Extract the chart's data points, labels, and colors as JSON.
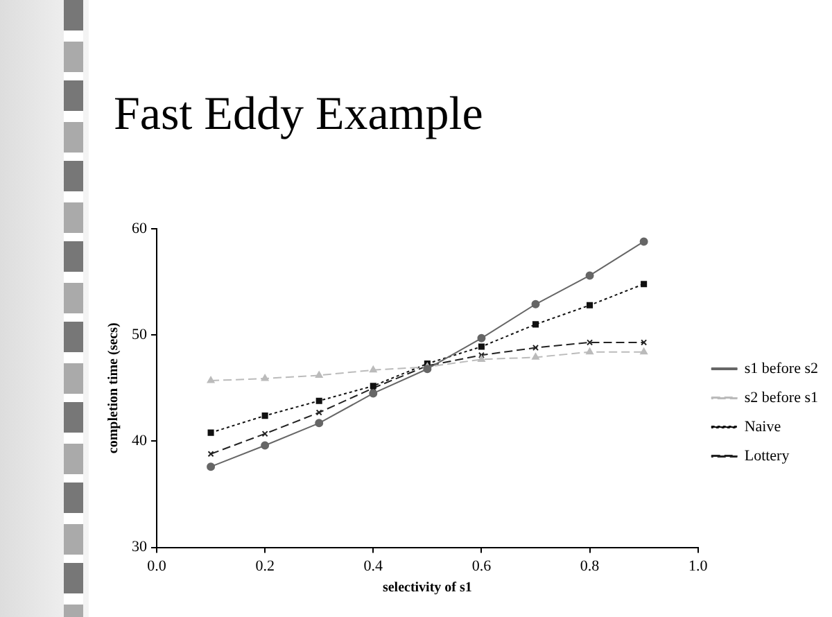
{
  "chart_data": {
    "type": "line",
    "title": "Fast Eddy Example",
    "xlabel": "selectivity of s1",
    "ylabel": "completion time (secs)",
    "x": [
      0.1,
      0.2,
      0.3,
      0.4,
      0.5,
      0.6,
      0.7,
      0.8,
      0.9
    ],
    "series": [
      {
        "name": "s1 before s2",
        "color": "#666666",
        "marker": "circle",
        "line_style": "solid",
        "values": [
          37.6,
          39.6,
          41.7,
          44.5,
          46.8,
          49.7,
          52.9,
          55.6,
          58.8
        ]
      },
      {
        "name": "s2 before s1",
        "color": "#bbbbbb",
        "marker": "triangle",
        "line_style": "dashed",
        "values": [
          45.7,
          45.9,
          46.2,
          46.7,
          47.0,
          47.7,
          47.9,
          48.4,
          48.4
        ]
      },
      {
        "name": "Naive",
        "color": "#111111",
        "marker": "square",
        "line_style": "dotted",
        "values": [
          40.8,
          42.4,
          43.8,
          45.2,
          47.3,
          48.9,
          51.0,
          52.8,
          54.8
        ]
      },
      {
        "name": "Lottery",
        "color": "#222222",
        "marker": "cross",
        "line_style": "dashed",
        "values": [
          38.8,
          40.7,
          42.7,
          45.0,
          47.1,
          48.1,
          48.8,
          49.3,
          49.3
        ]
      }
    ],
    "xlim": [
      0,
      1
    ],
    "xticks": [
      {
        "value": 0,
        "label": "0.0"
      },
      {
        "value": 0.2,
        "label": "0.2"
      },
      {
        "value": 0.4,
        "label": "0.4"
      },
      {
        "value": 0.6,
        "label": "0.6"
      },
      {
        "value": 0.8,
        "label": "0.8"
      },
      {
        "value": 1,
        "label": "1.0"
      }
    ],
    "ylim": [
      30,
      60
    ],
    "yticks": [
      30,
      40,
      50,
      60
    ],
    "grid": false,
    "legend": "right"
  }
}
